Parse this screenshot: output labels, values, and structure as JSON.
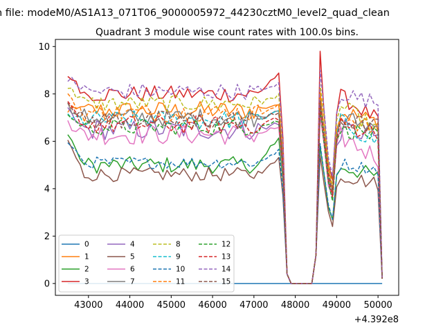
{
  "figure": {
    "suptitle": "n file: modeM0/AS1A13_071T06_9000005972_44230cztM0_level2_quad_clean",
    "offset_label": "+4.392e8"
  },
  "chart_data": {
    "type": "line",
    "title": "Quadrant 3 module wise count rates with 100.0s bins.",
    "xlabel": "",
    "ylabel": "",
    "x_offset": 439200000,
    "xlim": [
      42200,
      50500
    ],
    "ylim": [
      -0.5,
      10.3
    ],
    "xticks": [
      43000,
      44000,
      45000,
      46000,
      47000,
      48000,
      49000,
      50000
    ],
    "xtick_labels": [
      "43000",
      "44000",
      "45000",
      "46000",
      "47000",
      "48000",
      "49000",
      "50000"
    ],
    "yticks": [
      0,
      2,
      4,
      6,
      8,
      10
    ],
    "ytick_labels": [
      "0",
      "2",
      "4",
      "6",
      "8",
      "10"
    ],
    "grid": false,
    "legend_position": "lower-left",
    "legend_ncol": 4,
    "colors": [
      "#1f77b4",
      "#ff7f0e",
      "#2ca02c",
      "#d62728",
      "#9467bd",
      "#8c564b",
      "#e377c2",
      "#7f7f7f",
      "#bcbd22",
      "#17becf"
    ],
    "series": [
      {
        "name": "0",
        "style": "solid",
        "profile": "zero"
      },
      {
        "name": "1",
        "style": "solid",
        "base": 7.3,
        "noise": 0.4,
        "end": 6.8
      },
      {
        "name": "2",
        "style": "solid",
        "base": 5.0,
        "noise": 0.35,
        "start": 6.3,
        "end": 4.5,
        "ramp_to": 6.2
      },
      {
        "name": "3",
        "style": "solid",
        "base": 8.0,
        "noise": 0.35,
        "start": 8.8,
        "end": 6.9,
        "ramp_to": 8.8,
        "spike": 9.8
      },
      {
        "name": "4",
        "style": "solid",
        "base": 6.5,
        "noise": 0.45,
        "start": 7.3,
        "end": 6.3
      },
      {
        "name": "5",
        "style": "solid",
        "base": 4.6,
        "noise": 0.3,
        "start": 6.0,
        "end": 4.2,
        "ramp_to": 5.3
      },
      {
        "name": "6",
        "style": "solid",
        "base": 6.3,
        "noise": 0.45,
        "start": 6.8,
        "end": 5.3
      },
      {
        "name": "7",
        "style": "solid",
        "base": 7.0,
        "noise": 0.4,
        "start": 7.5,
        "end": 6.6
      },
      {
        "name": "8",
        "style": "dashed",
        "base": 7.6,
        "noise": 0.35,
        "start": 8.3,
        "end": 6.5
      },
      {
        "name": "9",
        "style": "dashed",
        "base": 6.9,
        "noise": 0.4,
        "start": 7.1,
        "end": 6.0
      },
      {
        "name": "10",
        "style": "dashed",
        "base": 5.1,
        "noise": 0.25,
        "start": 5.9,
        "end": 4.8,
        "ramp_to": 5.6
      },
      {
        "name": "11",
        "style": "dashed",
        "base": 7.2,
        "noise": 0.4,
        "start": 7.9,
        "end": 6.4
      },
      {
        "name": "12",
        "style": "dashed",
        "base": 6.6,
        "noise": 0.35,
        "start": 7.2,
        "end": 6.2
      },
      {
        "name": "13",
        "style": "dashed",
        "base": 6.7,
        "noise": 0.4,
        "start": 7.5,
        "end": 6.4
      },
      {
        "name": "14",
        "style": "dashed",
        "base": 8.1,
        "noise": 0.35,
        "start": 8.7,
        "end": 7.6,
        "spike": 9.0
      },
      {
        "name": "15",
        "style": "dashed",
        "base": 6.9,
        "noise": 0.4,
        "start": 7.6,
        "end": 6.6
      }
    ]
  }
}
